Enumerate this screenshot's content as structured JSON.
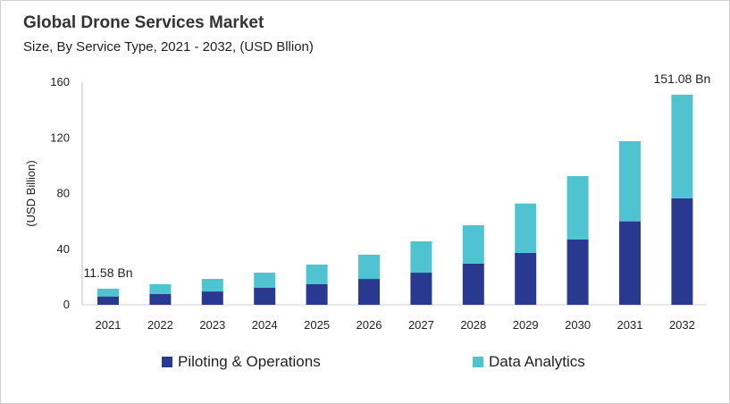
{
  "chart_data": {
    "type": "bar",
    "stacked": true,
    "title": "Global Drone Services Market",
    "subtitle": "Size, By Service Type, 2021 - 2032, (USD Bllion)",
    "xlabel": "",
    "ylabel": "(USD Billion)",
    "ylim": [
      0,
      160
    ],
    "yticks": [
      0,
      40,
      80,
      120,
      160
    ],
    "grid": false,
    "legend_position": "bottom",
    "categories": [
      "2021",
      "2022",
      "2023",
      "2024",
      "2025",
      "2026",
      "2027",
      "2028",
      "2029",
      "2030",
      "2031",
      "2032"
    ],
    "series": [
      {
        "name": "Piloting & Operations",
        "color": "#2a3990",
        "values": [
          6.0,
          7.7,
          9.6,
          12.2,
          14.8,
          18.6,
          23.1,
          29.6,
          37.3,
          46.9,
          60.0,
          76.5
        ]
      },
      {
        "name": "Data Analytics",
        "color": "#4fc3d0",
        "values": [
          5.58,
          7.1,
          9.0,
          10.9,
          14.1,
          17.4,
          22.5,
          27.6,
          35.5,
          45.6,
          57.6,
          74.58
        ]
      }
    ],
    "annotations": [
      {
        "category": "2021",
        "text": "11.58 Bn"
      },
      {
        "category": "2032",
        "text": "151.08 Bn"
      }
    ]
  }
}
